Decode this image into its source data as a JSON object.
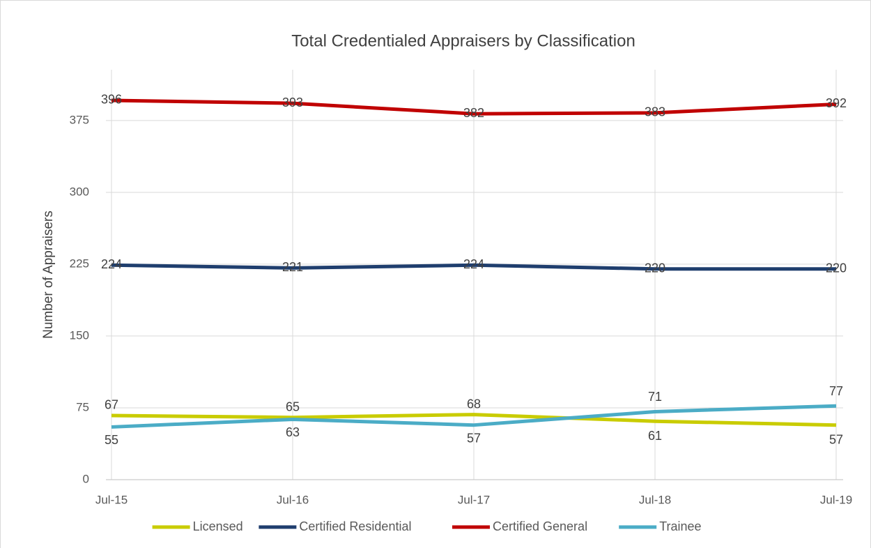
{
  "chart_data": {
    "type": "line",
    "title": "Total Credentialed Appraisers by Classification",
    "y_label": "Number of Appraisers",
    "categories": [
      "Jul-15",
      "Jul-16",
      "Jul-17",
      "Jul-18",
      "Jul-19"
    ],
    "series": [
      {
        "name": "Licensed",
        "color": "#c9cc00",
        "values": [
          67,
          65,
          68,
          61,
          57
        ]
      },
      {
        "name": "Certified Residential",
        "color": "#1f3e6e",
        "values": [
          224,
          221,
          224,
          220,
          220
        ]
      },
      {
        "name": "Certified General",
        "color": "#c00000",
        "values": [
          396,
          393,
          382,
          383,
          392
        ]
      },
      {
        "name": "Trainee",
        "color": "#4bacc6",
        "values": [
          55,
          63,
          57,
          71,
          77
        ]
      }
    ],
    "ylim": [
      0,
      428
    ],
    "yticks": [
      0,
      75,
      150,
      225,
      300,
      375
    ],
    "grid": true,
    "legend": "bottom"
  }
}
